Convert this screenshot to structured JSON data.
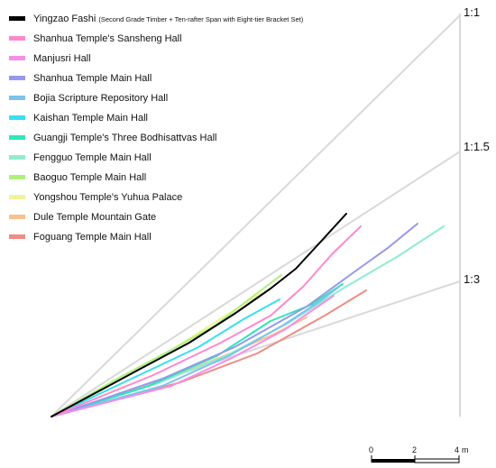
{
  "legend": [
    {
      "label": "Yingzao Fashi",
      "note": "(Second Grade Timber + Ten-rafter Span with Eight-tier Bracket Set)",
      "color": "#000000"
    },
    {
      "label": "Shanhua Temple's Sansheng Hall",
      "color": "#ff88cc"
    },
    {
      "label": "Manjusri Hall",
      "color": "#f58fe8"
    },
    {
      "label": "Shanhua Temple Main Hall",
      "color": "#9898ea"
    },
    {
      "label": "Bojia Scripture Repository Hall",
      "color": "#7cc2ea"
    },
    {
      "label": "Kaishan Temple Main Hall",
      "color": "#38e0ee"
    },
    {
      "label": "Guangji Temple's Three Bodhisattvas Hall",
      "color": "#2ee6b8"
    },
    {
      "label": "Fengguo Temple Main Hall",
      "color": "#90ecd0"
    },
    {
      "label": "Baoguo Temple Main Hall",
      "color": "#aef07a"
    },
    {
      "label": "Yongshou Temple's Yuhua Palace",
      "color": "#f2f29a"
    },
    {
      "label": "Dule Temple Mountain Gate",
      "color": "#f7c28e"
    },
    {
      "label": "Foguang Temple Main Hall",
      "color": "#f08c84"
    }
  ],
  "slopes": [
    "1:1",
    "1:1.5",
    "1:3"
  ],
  "scale": {
    "ticks": [
      "0",
      "2",
      "4"
    ],
    "unit": "m"
  }
}
